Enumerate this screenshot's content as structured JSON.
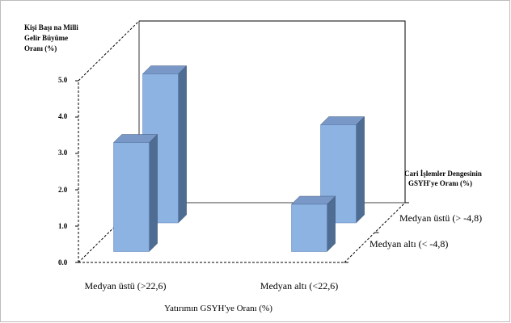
{
  "chart_data": {
    "type": "bar",
    "y_title_lines": [
      "Kişi Başı na Milli",
      "Gelir Büyüme",
      "Oranı (%)"
    ],
    "depth_title_lines": [
      "Cari İşlemler Dengesinin",
      "GSYH'ye Oranı (%)"
    ],
    "x_title": "Yatırımın GSYH'ye Oranı (%)",
    "categories": [
      "Medyan üstü (>22,6)",
      "Medyan altı (<22,6)"
    ],
    "depth_categories": [
      "Medyan altı (< -4,8)",
      "Medyan üstü (> -4,8)"
    ],
    "y_ticks": [
      "0.0",
      "1.0",
      "2.0",
      "3.0",
      "4.0",
      "5.0"
    ],
    "ylim": [
      0,
      5
    ],
    "values": [
      [
        3.0,
        1.3
      ],
      [
        4.1,
        2.7
      ]
    ],
    "bar_color": "#8db3e2",
    "grid": false
  }
}
